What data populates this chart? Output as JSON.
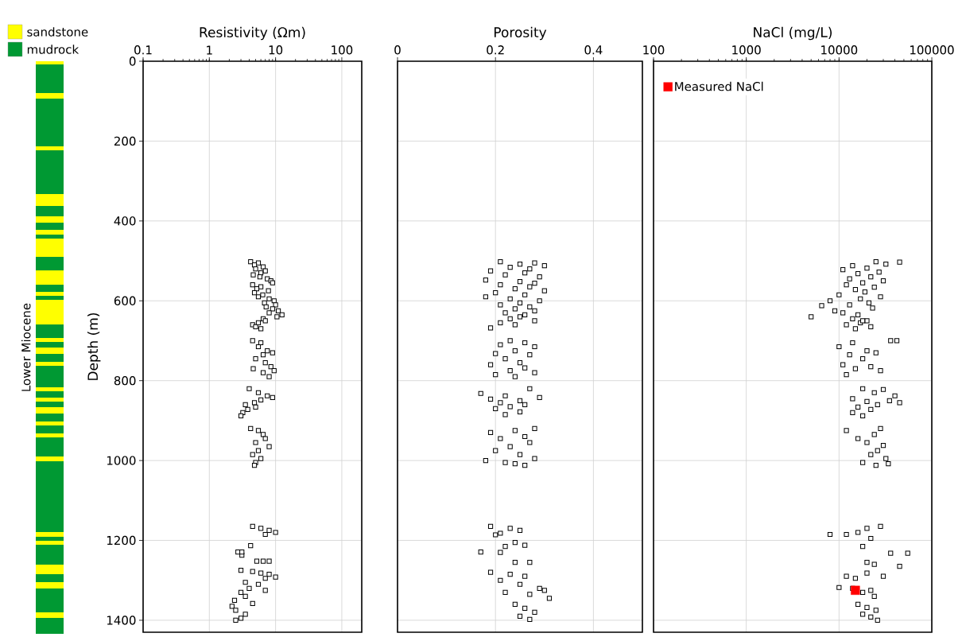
{
  "chart_data": [
    {
      "type": "other",
      "ylabel": "Lower Miocene",
      "categories": [
        "sandstone",
        "mudrock"
      ],
      "colors": [
        "#ffff00",
        "#009933"
      ]
    },
    {
      "type": "scatter",
      "xlabel": "Resistivity (Ωm)",
      "ylabel": "Depth (m)",
      "log": "x",
      "xlim": [
        0.1,
        200
      ],
      "xticks": [
        0.1,
        1,
        10,
        100
      ],
      "ylim": [
        1430,
        0
      ],
      "yticks": [
        0,
        200,
        400,
        600,
        800,
        1000,
        1200,
        1400
      ],
      "grid": true,
      "marker": "square",
      "series": [
        {
          "color": "#000000",
          "x": [
            4.2,
            5.5,
            4.8,
            6.5,
            5.0,
            7.0,
            6.0,
            4.6,
            5.8,
            7.5,
            8.5,
            9.0,
            4.5,
            6.0,
            5.2,
            7.8,
            4.8,
            6.4,
            5.5,
            8.0,
            9.5,
            6.8,
            10,
            7.2,
            9.0,
            11,
            8.0,
            12.5,
            10.5,
            6.5,
            7.0,
            5.5,
            4.5,
            5.0,
            6.0,
            4.5,
            6.0,
            5.5,
            7.5,
            9.0,
            6.5,
            5.0,
            7.0,
            8.5,
            4.6,
            9.5,
            6.5,
            8.0,
            4.0,
            5.5,
            7.5,
            9.0,
            6.0,
            4.8,
            3.5,
            5.0,
            3.8,
            3.2,
            3.0,
            4.2,
            5.5,
            6.5,
            7.0,
            5.0,
            8.0,
            5.5,
            4.5,
            6.0,
            5.0,
            4.8,
            4.5,
            6.0,
            8.0,
            10,
            7.0,
            4.2,
            2.7,
            3.1,
            3.1,
            5.2,
            6.5,
            8.0,
            3.0,
            4.5,
            6.0,
            8.0,
            10,
            7.0,
            3.5,
            5.5,
            4.0,
            7.0,
            3.0,
            3.5,
            2.4,
            4.5,
            2.2,
            2.5,
            3.5,
            3.0,
            2.5
          ],
          "values": [
            502,
            505,
            510,
            515,
            520,
            525,
            530,
            535,
            540,
            545,
            550,
            555,
            560,
            565,
            570,
            575,
            580,
            585,
            590,
            595,
            600,
            605,
            610,
            615,
            620,
            625,
            630,
            635,
            640,
            645,
            650,
            655,
            660,
            665,
            670,
            700,
            705,
            715,
            725,
            730,
            735,
            745,
            755,
            765,
            770,
            775,
            780,
            790,
            820,
            830,
            838,
            842,
            848,
            855,
            860,
            866,
            872,
            880,
            888,
            920,
            925,
            935,
            945,
            955,
            965,
            975,
            985,
            995,
            1005,
            1012,
            1165,
            1170,
            1175,
            1180,
            1185,
            1213,
            1229,
            1237,
            1229,
            1252,
            1252,
            1252,
            1275,
            1278,
            1282,
            1285,
            1292,
            1295,
            1305,
            1310,
            1320,
            1325,
            1330,
            1340,
            1350,
            1358,
            1365,
            1375,
            1385,
            1395,
            1400
          ]
        }
      ]
    },
    {
      "type": "scatter",
      "xlabel": "Porosity",
      "xlim": [
        0,
        0.5
      ],
      "xticks": [
        0,
        0.2,
        0.4
      ],
      "ylim": [
        1430,
        0
      ],
      "yticks": [
        0,
        200,
        400,
        600,
        800,
        1000,
        1200,
        1400
      ],
      "grid": true,
      "marker": "square",
      "tick_labels": "x",
      "series": [
        {
          "color": "#000000",
          "x": [
            0.21,
            0.28,
            0.25,
            0.3,
            0.23,
            0.27,
            0.19,
            0.26,
            0.22,
            0.29,
            0.18,
            0.25,
            0.28,
            0.21,
            0.27,
            0.24,
            0.3,
            0.2,
            0.26,
            0.18,
            0.23,
            0.29,
            0.25,
            0.21,
            0.27,
            0.24,
            0.28,
            0.22,
            0.26,
            0.25,
            0.23,
            0.28,
            0.21,
            0.24,
            0.19,
            0.23,
            0.26,
            0.21,
            0.28,
            0.24,
            0.2,
            0.27,
            0.22,
            0.25,
            0.19,
            0.26,
            0.23,
            0.28,
            0.2,
            0.24,
            0.27,
            0.17,
            0.22,
            0.29,
            0.19,
            0.25,
            0.21,
            0.26,
            0.23,
            0.2,
            0.25,
            0.22,
            0.28,
            0.24,
            0.19,
            0.26,
            0.21,
            0.27,
            0.23,
            0.2,
            0.25,
            0.28,
            0.18,
            0.22,
            0.24,
            0.26,
            0.19,
            0.23,
            0.25,
            0.21,
            0.2,
            0.24,
            0.26,
            0.22,
            0.17,
            0.21,
            0.24,
            0.27,
            0.19,
            0.23,
            0.26,
            0.21,
            0.25,
            0.29,
            0.3,
            0.22,
            0.27,
            0.31,
            0.24,
            0.26,
            0.28,
            0.25,
            0.27
          ],
          "values": [
            502,
            505,
            508,
            512,
            516,
            520,
            525,
            530,
            535,
            540,
            548,
            552,
            556,
            560,
            565,
            570,
            575,
            580,
            585,
            590,
            595,
            600,
            605,
            610,
            615,
            620,
            625,
            630,
            635,
            640,
            645,
            650,
            655,
            660,
            668,
            700,
            705,
            710,
            715,
            725,
            732,
            735,
            745,
            755,
            760,
            768,
            775,
            780,
            785,
            790,
            820,
            832,
            838,
            842,
            846,
            850,
            855,
            860,
            865,
            870,
            878,
            885,
            920,
            925,
            930,
            940,
            945,
            955,
            965,
            975,
            985,
            995,
            1000,
            1005,
            1008,
            1012,
            1165,
            1170,
            1175,
            1182,
            1186,
            1205,
            1212,
            1215,
            1229,
            1230,
            1255,
            1255,
            1280,
            1285,
            1290,
            1300,
            1310,
            1320,
            1325,
            1330,
            1335,
            1345,
            1360,
            1370,
            1380,
            1390,
            1398
          ]
        }
      ]
    },
    {
      "type": "scatter",
      "xlabel": "NaCl (mg/L)",
      "log": "x",
      "xlim": [
        100,
        100000
      ],
      "xticks": [
        100,
        1000,
        10000,
        100000
      ],
      "ylim": [
        1430,
        0
      ],
      "yticks": [
        0,
        200,
        400,
        600,
        800,
        1000,
        1200,
        1400
      ],
      "grid": true,
      "marker": "square",
      "tick_labels": "x",
      "legend": "top left",
      "series": [
        {
          "color": "#000000",
          "x": [
            25000,
            45000,
            32000,
            14000,
            20000,
            11000,
            27000,
            16000,
            22000,
            13000,
            30000,
            18000,
            12000,
            24000,
            15000,
            19000,
            10000,
            28000,
            17000,
            8000,
            21000,
            13000,
            6500,
            23000,
            9000,
            11000,
            16000,
            5000,
            14000,
            20000,
            17000,
            12000,
            22000,
            15000,
            18000,
            36000,
            42000,
            14000,
            10000,
            20000,
            25000,
            13000,
            18000,
            11000,
            22000,
            15000,
            28000,
            12000,
            18000,
            30000,
            24000,
            40000,
            14000,
            35000,
            20000,
            45000,
            26000,
            16000,
            22000,
            14000,
            18000,
            28000,
            12000,
            24000,
            16000,
            20000,
            30000,
            26000,
            22000,
            32000,
            18000,
            34000,
            25000,
            8000,
            12000,
            20000,
            28000,
            16000,
            22000,
            36000,
            55000,
            18000,
            20000,
            24000,
            45000,
            12000,
            20000,
            30000,
            15000,
            22000,
            10000,
            14000,
            18000,
            24000,
            16000,
            20000,
            25000,
            18000,
            22000,
            26000
          ],
          "values": [
            502,
            503,
            508,
            512,
            518,
            522,
            528,
            532,
            540,
            545,
            550,
            555,
            560,
            566,
            572,
            578,
            585,
            590,
            595,
            600,
            605,
            610,
            612,
            618,
            625,
            630,
            635,
            640,
            645,
            650,
            655,
            660,
            665,
            670,
            650,
            700,
            700,
            705,
            715,
            725,
            730,
            735,
            745,
            760,
            765,
            770,
            775,
            785,
            820,
            822,
            830,
            838,
            845,
            850,
            852,
            855,
            860,
            866,
            872,
            880,
            888,
            920,
            925,
            935,
            945,
            955,
            962,
            975,
            985,
            995,
            1005,
            1008,
            1012,
            1185,
            1185,
            1170,
            1165,
            1180,
            1195,
            1232,
            1232,
            1215,
            1255,
            1260,
            1265,
            1290,
            1282,
            1290,
            1295,
            1325,
            1318,
            1320,
            1330,
            1340,
            1360,
            1368,
            1375,
            1385,
            1392,
            1400
          ]
        },
        {
          "name": "Measured NaCl",
          "color": "#ff0000",
          "x": [
            15000
          ],
          "values": [
            1325
          ]
        }
      ]
    }
  ]
}
